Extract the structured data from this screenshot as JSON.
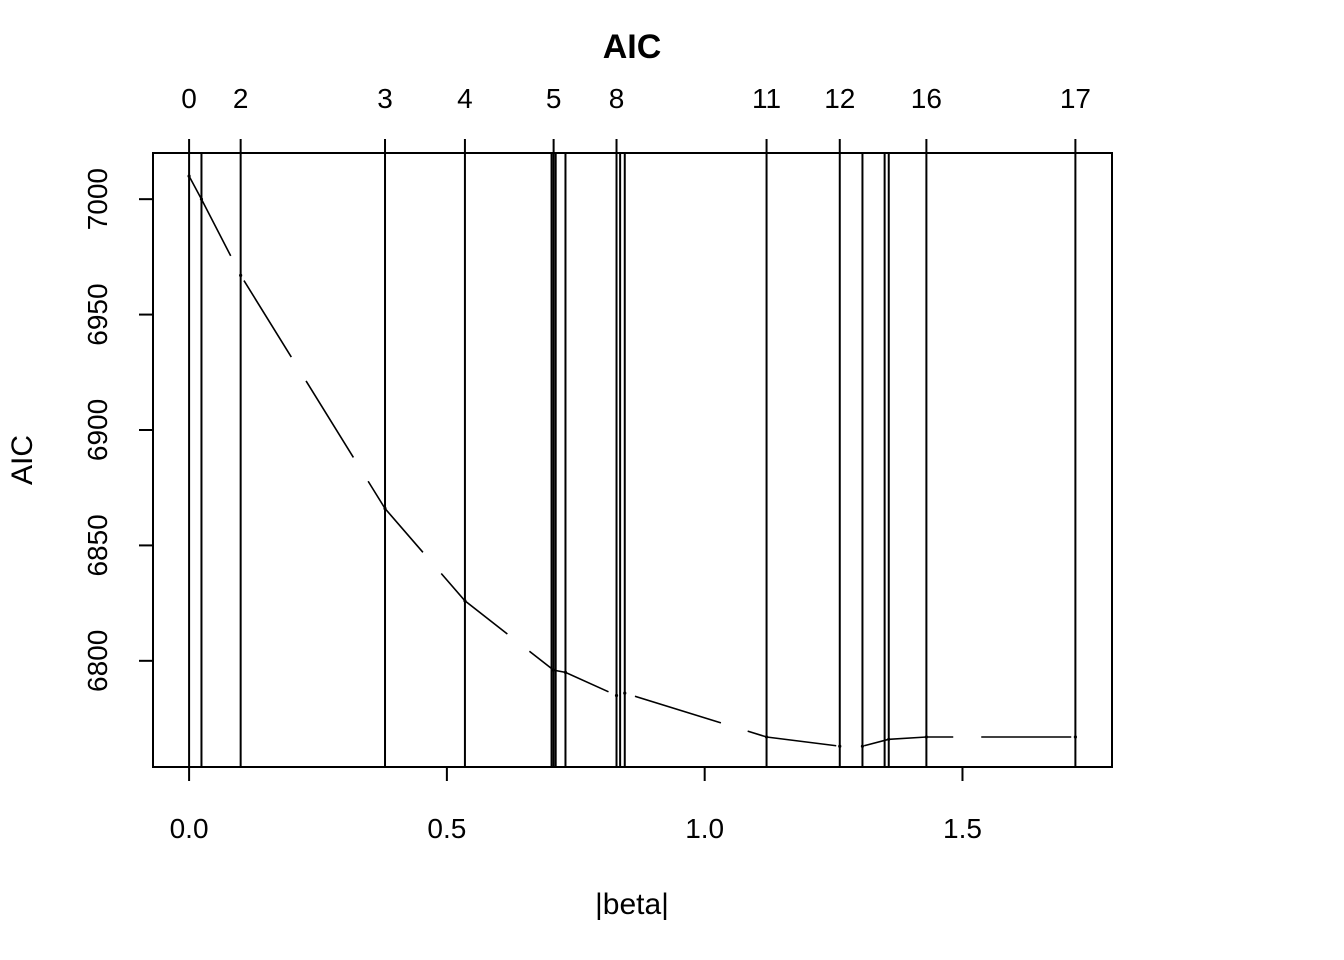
{
  "chart_data": {
    "type": "line",
    "title": "AIC",
    "xlabel": "|beta|",
    "ylabel": "AIC",
    "xlim": [
      -0.07,
      1.79
    ],
    "ylim": [
      6754,
      7020
    ],
    "x_ticks": [
      {
        "value": 0.0,
        "label": "0.0"
      },
      {
        "value": 0.5,
        "label": "0.5"
      },
      {
        "value": 1.0,
        "label": "1.0"
      },
      {
        "value": 1.5,
        "label": "1.5"
      }
    ],
    "y_ticks": [
      {
        "value": 6800,
        "label": "6800"
      },
      {
        "value": 6850,
        "label": "6850"
      },
      {
        "value": 6900,
        "label": "6900"
      },
      {
        "value": 6950,
        "label": "6950"
      },
      {
        "value": 7000,
        "label": "7000"
      }
    ],
    "top_ticks": [
      {
        "value": 0.0,
        "label": "0"
      },
      {
        "value": 0.1,
        "label": "2"
      },
      {
        "value": 0.38,
        "label": "3"
      },
      {
        "value": 0.535,
        "label": "4"
      },
      {
        "value": 0.707,
        "label": "5"
      },
      {
        "value": 0.829,
        "label": "8"
      },
      {
        "value": 1.12,
        "label": "11"
      },
      {
        "value": 1.262,
        "label": "12"
      },
      {
        "value": 1.43,
        "label": "16"
      },
      {
        "value": 1.719,
        "label": "17"
      }
    ],
    "vertical_lines": [
      0.0,
      0.024,
      0.1,
      0.38,
      0.535,
      0.703,
      0.707,
      0.711,
      0.73,
      0.829,
      0.836,
      0.845,
      1.12,
      1.262,
      1.306,
      1.349,
      1.357,
      1.43,
      1.719
    ],
    "series": [
      {
        "line_style": "dashed",
        "x": [
          0.0,
          0.024,
          0.1,
          0.38,
          0.535,
          0.707,
          0.73,
          0.829,
          0.845,
          1.12,
          1.262,
          1.306,
          1.357,
          1.43,
          1.719
        ],
        "y": [
          7010,
          7000,
          6967,
          6866,
          6826,
          6796,
          6795,
          6785,
          6786,
          6767,
          6763,
          6763,
          6766,
          6767,
          6767
        ]
      }
    ],
    "grid": false,
    "legend": "none"
  }
}
